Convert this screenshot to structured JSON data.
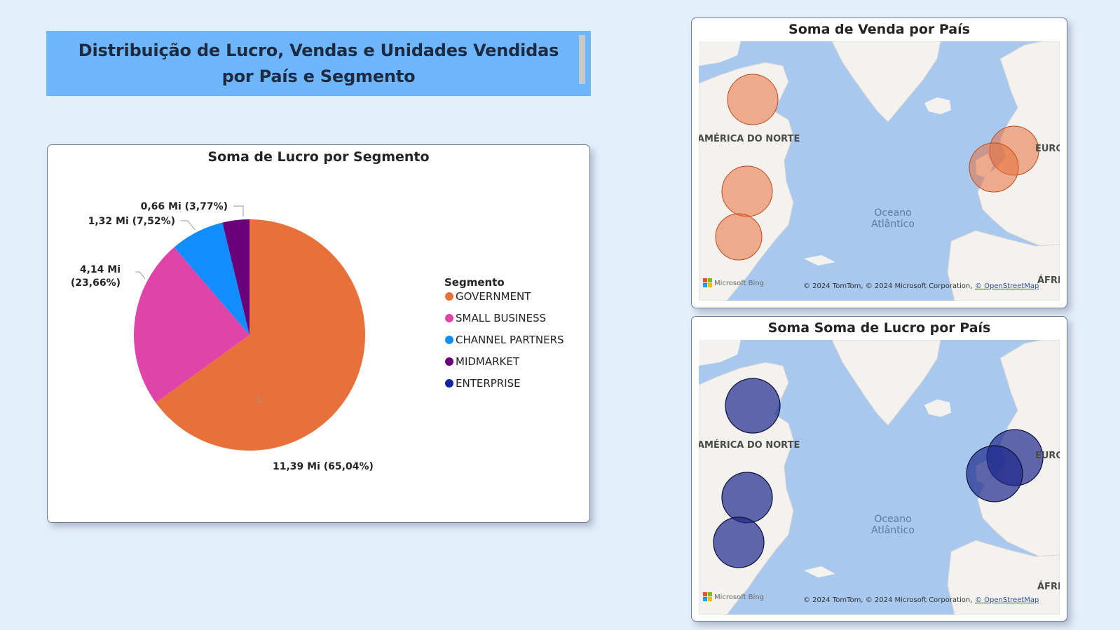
{
  "header": {
    "title": "Distribuição de Lucro, Vendas e Unidades Vendidas por País e Segmento"
  },
  "pie_chart": {
    "title": "Soma de Lucro por Segmento",
    "legend_title": "Segmento",
    "legend_items": [
      "GOVERNMENT",
      "SMALL BUSINESS",
      "CHANNEL PARTNERS",
      "MIDMARKET",
      "ENTERPRISE"
    ],
    "data_labels": {
      "government": "11,39 Mi (65,04%)",
      "small_business_line1": "4,14 Mi",
      "small_business_line2": "(23,66%)",
      "channel_partners": "1,32 Mi (7,52%)",
      "midmarket": "0,66 Mi (3,77%)"
    }
  },
  "chart_data": {
    "type": "pie",
    "title": "Soma de Lucro por Segmento",
    "legend_title": "Segmento",
    "categories": [
      "GOVERNMENT",
      "SMALL BUSINESS",
      "CHANNEL PARTNERS",
      "MIDMARKET",
      "ENTERPRISE"
    ],
    "values": [
      11.39,
      4.14,
      1.32,
      0.66,
      0
    ],
    "percentages": [
      65.04,
      23.66,
      7.52,
      3.77,
      0
    ],
    "unit": "Mi",
    "colors": [
      "#e8703a",
      "#e044a8",
      "#118dff",
      "#6b007b",
      "#12239e"
    ],
    "legend_placement": "right"
  },
  "map_sales": {
    "title": "Soma de Venda por País",
    "bubble_color": "#e8703a",
    "labels": {
      "north_america": "AMÉRICA DO NORTE",
      "europe": "EURO",
      "africa": "ÁFRI",
      "ocean_line1": "Oceano",
      "ocean_line2": "Atlântico"
    },
    "brand": "Microsoft Bing",
    "attribution": "© 2024 TomTom, © 2024 Microsoft Corporation,",
    "attribution_link": "© OpenStreetMap"
  },
  "map_profit": {
    "title": "Soma Soma de Lucro por País",
    "bubble_color": "#1e2a8c",
    "labels": {
      "north_america": "AMÉRICA DO NORTE",
      "europe": "EURO",
      "africa": "ÁFRI",
      "ocean_line1": "Oceano",
      "ocean_line2": "Atlântico"
    },
    "brand": "Microsoft Bing",
    "attribution": "© 2024 TomTom, © 2024 Microsoft Corporation,",
    "attribution_link": "© OpenStreetMap"
  }
}
